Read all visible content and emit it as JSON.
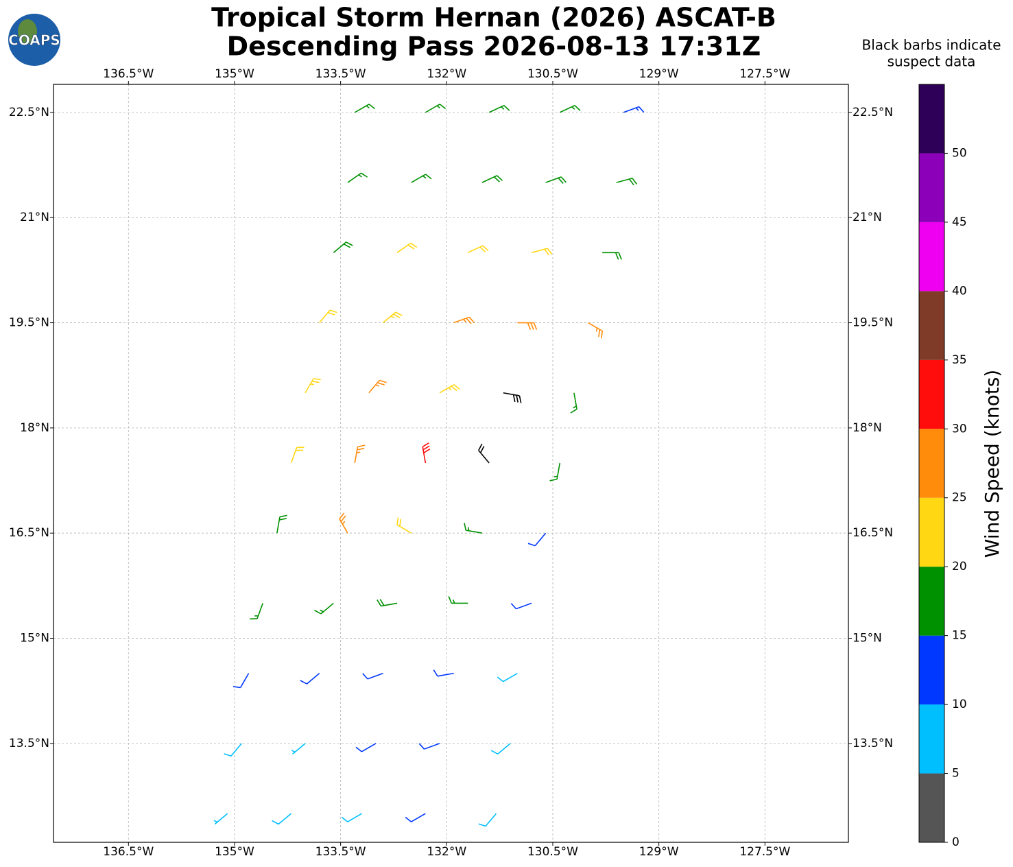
{
  "header": {
    "logo": "COAPS",
    "title": [
      "Tropical Storm Hernan (2026) ASCAT-B",
      "Descending Pass 2026-08-13 17:31Z"
    ]
  },
  "annotation": [
    "Black barbs indicate",
    "suspect data"
  ],
  "map": {
    "lonlim": [
      -137.56,
      -126.32
    ],
    "latlim": [
      12.09,
      22.9
    ],
    "grid": true,
    "lonticks": [
      {
        "value": -136.5,
        "label": "136.5°W"
      },
      {
        "value": -135,
        "label": "135°W"
      },
      {
        "value": -133.5,
        "label": "133.5°W"
      },
      {
        "value": -132,
        "label": "132°W"
      },
      {
        "value": -130.5,
        "label": "130.5°W"
      },
      {
        "value": -129,
        "label": "129°W"
      },
      {
        "value": -127.5,
        "label": "127.5°W"
      }
    ],
    "latticks": [
      {
        "value": 13.5,
        "label": "13.5°N"
      },
      {
        "value": 15,
        "label": "15°N"
      },
      {
        "value": 16.5,
        "label": "16.5°N"
      },
      {
        "value": 18,
        "label": "18°N"
      },
      {
        "value": 19.5,
        "label": "19.5°N"
      },
      {
        "value": 21,
        "label": "21°N"
      },
      {
        "value": 22.5,
        "label": "22.5°N"
      }
    ],
    "barbs": {
      "lon": [
        -135.1,
        -134.2,
        -133.2,
        -132.3,
        -131.3,
        -134.9,
        -134.0,
        -133.0,
        -132.1,
        -131.1,
        -134.8,
        -133.8,
        -132.9,
        -131.9,
        -131.0,
        -134.6,
        -133.6,
        -132.7,
        -131.7,
        -130.8,
        -134.4,
        -133.4,
        -132.5,
        -131.5,
        -130.6,
        -134.2,
        -133.3,
        -132.3,
        -131.4,
        -130.4,
        -134.0,
        -133.1,
        -132.1,
        -131.2,
        -130.2,
        -133.8,
        -132.9,
        -131.9,
        -131.0,
        -130.0,
        -133.6,
        -132.7,
        -131.7,
        -130.8,
        -129.8,
        -133.4,
        -132.5,
        -131.5,
        -130.6,
        -129.6,
        -133.3,
        -132.3,
        -131.4,
        -130.4,
        -129.5
      ],
      "lat": [
        12.5,
        12.5,
        12.5,
        12.5,
        12.5,
        13.5,
        13.5,
        13.5,
        13.5,
        13.5,
        14.5,
        14.5,
        14.5,
        14.5,
        14.5,
        15.5,
        15.5,
        15.5,
        15.5,
        15.5,
        16.5,
        16.5,
        16.5,
        16.5,
        16.5,
        17.5,
        17.5,
        17.5,
        17.5,
        17.5,
        18.5,
        18.5,
        18.5,
        18.5,
        18.5,
        19.5,
        19.5,
        19.5,
        19.5,
        19.5,
        20.5,
        20.5,
        20.5,
        20.5,
        20.5,
        21.5,
        21.5,
        21.5,
        21.5,
        21.5,
        22.5,
        22.5,
        22.5,
        22.5,
        22.5
      ],
      "speed": [
        7,
        8,
        9,
        12,
        8,
        8,
        7,
        12,
        12,
        8,
        12,
        12,
        12,
        12,
        8,
        16,
        17,
        19,
        15,
        11,
        19,
        26,
        22,
        17,
        12,
        22,
        27,
        30,
        20,
        17,
        23,
        27,
        23,
        28,
        17,
        21,
        24,
        27,
        28,
        27,
        18,
        21,
        22,
        21,
        18,
        17,
        17,
        18,
        19,
        18,
        16,
        16,
        17,
        17,
        13
      ],
      "direction": [
        230,
        230,
        240,
        240,
        220,
        220,
        230,
        240,
        250,
        230,
        210,
        230,
        250,
        260,
        240,
        200,
        230,
        260,
        270,
        250,
        10,
        330,
        300,
        280,
        220,
        20,
        10,
        350,
        320,
        190,
        30,
        40,
        60,
        100,
        170,
        40,
        50,
        70,
        90,
        120,
        50,
        55,
        65,
        75,
        90,
        55,
        60,
        65,
        70,
        75,
        60,
        60,
        65,
        65,
        70
      ],
      "suspect": [
        false,
        false,
        false,
        false,
        false,
        false,
        false,
        false,
        false,
        false,
        false,
        false,
        false,
        false,
        false,
        false,
        false,
        false,
        false,
        false,
        false,
        false,
        false,
        false,
        false,
        false,
        false,
        false,
        true,
        false,
        false,
        false,
        false,
        true,
        false,
        false,
        false,
        false,
        false,
        false,
        false,
        false,
        false,
        false,
        false,
        false,
        false,
        false,
        false,
        false,
        false,
        false,
        false,
        false,
        false
      ],
      "suspect_color": "#000000"
    }
  },
  "colorbar": {
    "label": "Wind Speed (knots)",
    "lim": [
      0,
      55
    ],
    "bounds": [
      0,
      5,
      10,
      15,
      20,
      25,
      30,
      35,
      40,
      45,
      50,
      55
    ],
    "colors": [
      "#555555",
      "#00bfff",
      "#0038ff",
      "#009100",
      "#ffd712",
      "#ff8c0a",
      "#ff0d0d",
      "#7f3a28",
      "#f000f0",
      "#8b00b8",
      "#2f0057"
    ],
    "ticks": [
      0,
      5,
      10,
      15,
      20,
      25,
      30,
      35,
      40,
      45,
      50
    ]
  }
}
